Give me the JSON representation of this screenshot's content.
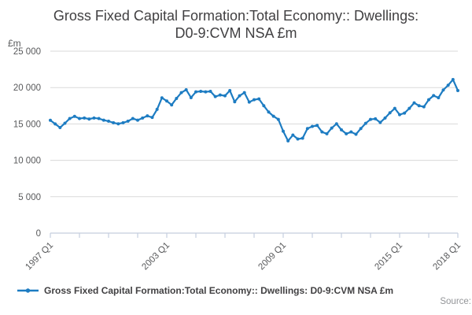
{
  "chart_data": {
    "type": "line",
    "title_lines": [
      "Gross Fixed Capital Formation:Total Economy:: Dwellings:",
      "D0-9:CVM NSA £m"
    ],
    "unit_label": "£m",
    "ylabel": "£m",
    "ylim": [
      0,
      25000
    ],
    "y_ticks": [
      {
        "value": 0,
        "label": "0"
      },
      {
        "value": 5000,
        "label": "5 000"
      },
      {
        "value": 10000,
        "label": "10 000"
      },
      {
        "value": 15000,
        "label": "15 000"
      },
      {
        "value": 20000,
        "label": "20 000"
      },
      {
        "value": 25000,
        "label": "25 000"
      }
    ],
    "x_start": "1997 Q1",
    "x_end": "2018 Q1",
    "frequency": "quarterly",
    "x_ticks": [
      {
        "q": 0,
        "label": "1997 Q1"
      },
      {
        "q": 6,
        "label": ""
      },
      {
        "q": 12,
        "label": ""
      },
      {
        "q": 18,
        "label": ""
      },
      {
        "q": 24,
        "label": "2003 Q1"
      },
      {
        "q": 30,
        "label": ""
      },
      {
        "q": 36,
        "label": ""
      },
      {
        "q": 42,
        "label": ""
      },
      {
        "q": 48,
        "label": "2009 Q1"
      },
      {
        "q": 54,
        "label": ""
      },
      {
        "q": 60,
        "label": ""
      },
      {
        "q": 66,
        "label": ""
      },
      {
        "q": 72,
        "label": "2015 Q1"
      },
      {
        "q": 78,
        "label": ""
      },
      {
        "q": 84,
        "label": "2018 Q1"
      }
    ],
    "series": [
      {
        "name": "Gross Fixed Capital Formation:Total Economy:: Dwellings: D0-9:CVM NSA £m",
        "color": "#1d7cc2",
        "values": [
          15500,
          15000,
          14500,
          15100,
          15750,
          16050,
          15750,
          15820,
          15680,
          15820,
          15740,
          15520,
          15380,
          15160,
          15020,
          15160,
          15380,
          15740,
          15520,
          15820,
          16110,
          15890,
          17000,
          18590,
          18150,
          17620,
          18510,
          19300,
          19700,
          18620,
          19410,
          19480,
          19410,
          19480,
          18760,
          18980,
          18870,
          19590,
          18050,
          18870,
          19300,
          18000,
          18330,
          18440,
          17500,
          16640,
          16060,
          15630,
          14000,
          12680,
          13470,
          12930,
          13040,
          14370,
          14660,
          14800,
          13900,
          13650,
          14440,
          15020,
          14190,
          13650,
          13900,
          13580,
          14370,
          15090,
          15630,
          15700,
          15200,
          15820,
          16530,
          17140,
          16280,
          16490,
          17140,
          17900,
          17500,
          17360,
          18330,
          18900,
          18600,
          19670,
          20320,
          21100,
          19590
        ]
      }
    ],
    "legend": {
      "position": "bottom-left"
    },
    "source_label": "Source:",
    "grid": "horizontal",
    "colors": {
      "line": "#1d7cc2",
      "grid": "#d9d9d9",
      "axis": "#c5cede",
      "tick_label": "#58595b",
      "title": "#414042",
      "source": "#939598"
    }
  }
}
